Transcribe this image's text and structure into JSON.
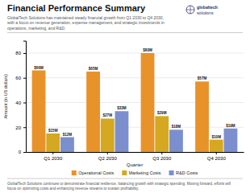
{
  "chart_data": {
    "type": "bar",
    "title": "Financial Performance Summary",
    "subtitle": "GlobalTech Solutions has maintained steady financial growth from Q1 2030 to Q4 2030,\nwith a focus on revenue generation, expense management, and strategic investments in\noperations, marketing, and R&D.",
    "footer": "GlobalTech Solutions continues to demonstrate financial resilience, balancing growth with strategic spending. Moving forward, efforts will\nfocus on optimizing costs and enhancing revenue streams to sustain profitability.",
    "annotations": [
      "globaltech",
      "solutions"
    ],
    "x_label": "Quarter",
    "y_label": "Amount (in US dollars)",
    "categories": [
      "Q1 2030",
      "Q2 2030",
      "Q3 2030",
      "Q4 2030"
    ],
    "series": [
      {
        "name": "Operational Costs",
        "color": "#E8922A",
        "values": [
          66,
          65,
          80,
          57
        ],
        "value_labels": [
          "$66M",
          "$65M",
          "$80M",
          "$57M"
        ]
      },
      {
        "name": "Marketing Costs",
        "color": "#D4A820",
        "values": [
          15,
          27,
          29,
          10
        ],
        "value_labels": [
          "$15M",
          "$27M",
          "$29M",
          "$10M"
        ]
      },
      {
        "name": "R&D Costs",
        "color": "#7B8FCE",
        "values": [
          12,
          33,
          18,
          19
        ],
        "value_labels": [
          "$12M",
          "$33M",
          "$18M",
          "$19M"
        ]
      }
    ],
    "ylim": [
      0,
      90
    ],
    "yticks": [
      0,
      20,
      40,
      60,
      80
    ],
    "grid": true,
    "legend": "bottom",
    "data_labels": true
  }
}
